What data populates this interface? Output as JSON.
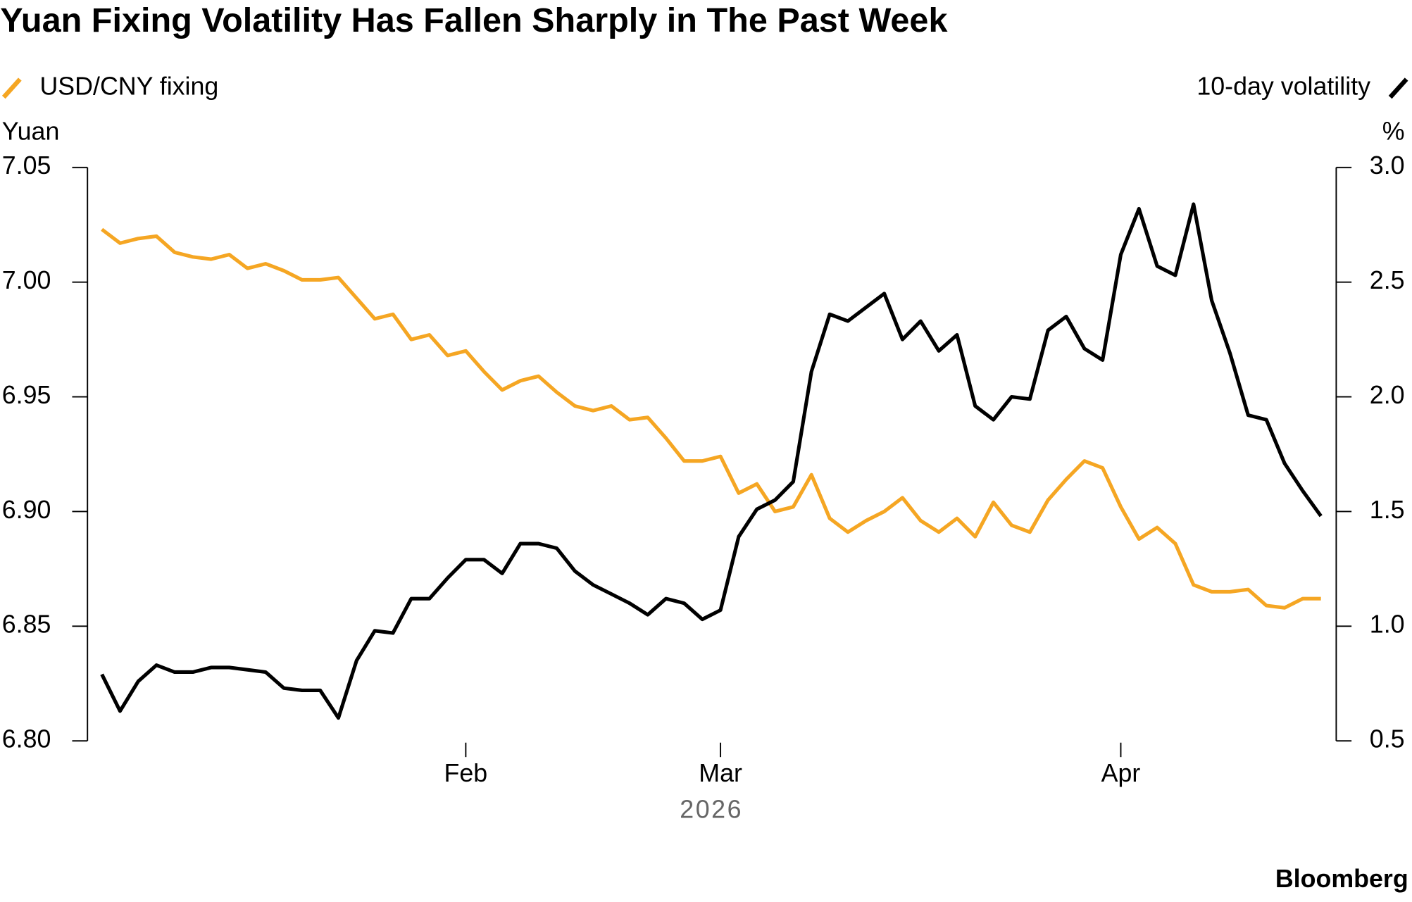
{
  "chart_data": {
    "type": "line",
    "title": "Yuan Fixing Volatility Has Fallen Sharply in The Past Week",
    "xlabel": "2026",
    "ylabel": "Yuan",
    "y2label": "%",
    "source": "Bloomberg",
    "categories": [
      null,
      null,
      null,
      null,
      null,
      null,
      null,
      null,
      null,
      null,
      null,
      null,
      null,
      null,
      null,
      null,
      null,
      null,
      null,
      null,
      "Feb",
      null,
      null,
      null,
      null,
      null,
      null,
      null,
      null,
      null,
      null,
      null,
      null,
      null,
      "Mar",
      null,
      null,
      null,
      null,
      null,
      null,
      null,
      null,
      null,
      null,
      null,
      null,
      null,
      null,
      null,
      null,
      null,
      null,
      null,
      null,
      null,
      "Apr",
      null,
      null,
      null,
      null,
      null,
      null,
      null,
      null,
      null,
      null,
      null
    ],
    "ylim": [
      6.8,
      7.05
    ],
    "yticks": [
      {
        "value": 6.8,
        "label": "6.80"
      },
      6.85,
      {
        "value": 6.9,
        "label": "6.90"
      },
      6.95,
      {
        "value": 7,
        "label": "7.00"
      },
      7.05
    ],
    "y2lim": [
      0.5,
      3
    ],
    "y2ticks": [
      0.5,
      {
        "value": 1,
        "label": "1.0"
      },
      1.5,
      {
        "value": 2,
        "label": "2.0"
      },
      2.5,
      {
        "value": 3,
        "label": "3.0"
      }
    ],
    "series": [
      {
        "name": "USD/CNY fixing",
        "color": "#f5a623",
        "axis": "y",
        "values": [
          7.023,
          7.017,
          7.019,
          7.02,
          7.013,
          7.011,
          7.01,
          7.012,
          7.006,
          7.008,
          7.005,
          7.001,
          7.001,
          7.002,
          6.993,
          6.984,
          6.986,
          6.975,
          6.977,
          6.968,
          6.97,
          6.961,
          6.953,
          6.957,
          6.959,
          6.952,
          6.946,
          6.944,
          6.946,
          6.94,
          6.941,
          6.932,
          6.922,
          6.922,
          6.924,
          6.908,
          6.912,
          6.9,
          6.902,
          6.916,
          6.897,
          6.891,
          6.896,
          6.9,
          6.906,
          6.896,
          6.891,
          6.897,
          6.889,
          6.904,
          6.894,
          6.891,
          6.905,
          6.914,
          6.922,
          6.919,
          6.902,
          6.888,
          6.893,
          6.886,
          6.868,
          6.865,
          6.865,
          6.866,
          6.859,
          6.858,
          6.862,
          6.862
        ]
      },
      {
        "name": "10-day volatility",
        "color": "#000000",
        "axis": "y2",
        "values": [
          0.79,
          0.63,
          0.76,
          0.83,
          0.8,
          0.8,
          0.82,
          0.82,
          0.81,
          0.8,
          0.73,
          0.72,
          0.72,
          0.6,
          0.85,
          0.98,
          0.97,
          1.12,
          1.12,
          1.21,
          1.29,
          1.29,
          1.23,
          1.36,
          1.36,
          1.34,
          1.24,
          1.18,
          1.14,
          1.1,
          1.05,
          1.12,
          1.1,
          1.03,
          1.07,
          1.39,
          1.51,
          1.55,
          1.63,
          2.11,
          2.36,
          2.33,
          2.39,
          2.45,
          2.25,
          2.33,
          2.2,
          2.27,
          1.96,
          1.9,
          2.0,
          1.99,
          2.29,
          2.35,
          2.21,
          2.16,
          2.62,
          2.82,
          2.57,
          2.53,
          2.84,
          2.42,
          2.19,
          1.92,
          1.9,
          1.71,
          1.59,
          1.48
        ]
      }
    ]
  }
}
